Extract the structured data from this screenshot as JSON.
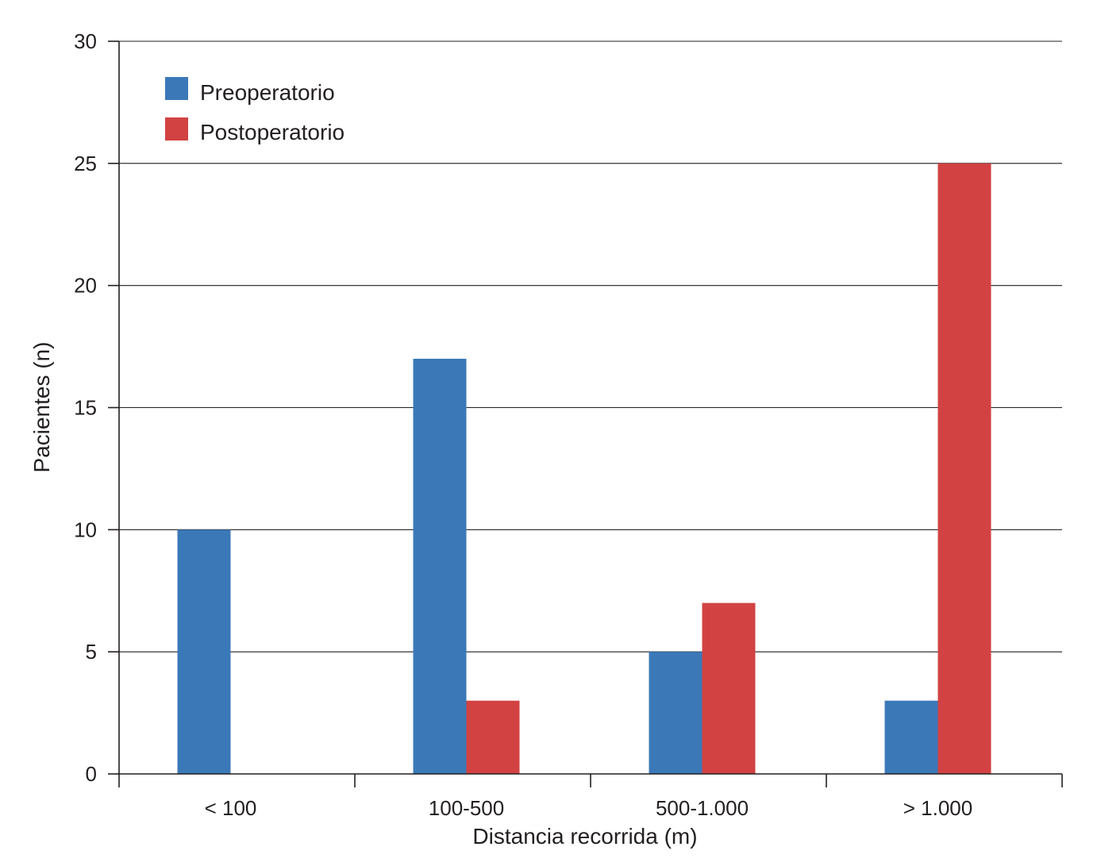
{
  "chart_data": {
    "type": "bar",
    "title": "",
    "xlabel": "Distancia recorrida (m)",
    "ylabel": "Pacientes (n)",
    "categories": [
      "< 100",
      "100-500",
      "500-1.000",
      "> 1.000"
    ],
    "series": [
      {
        "name": "Preoperatorio",
        "color": "#3b78b8",
        "values": [
          10,
          17,
          5,
          3
        ]
      },
      {
        "name": "Postoperatorio",
        "color": "#d24242",
        "values": [
          0,
          3,
          7,
          25
        ]
      }
    ],
    "ylim": [
      0,
      30
    ],
    "yticks": [
      "0",
      "5",
      "10",
      "15",
      "20",
      "25",
      "30"
    ],
    "grid": true,
    "legend_position": "top-left"
  }
}
